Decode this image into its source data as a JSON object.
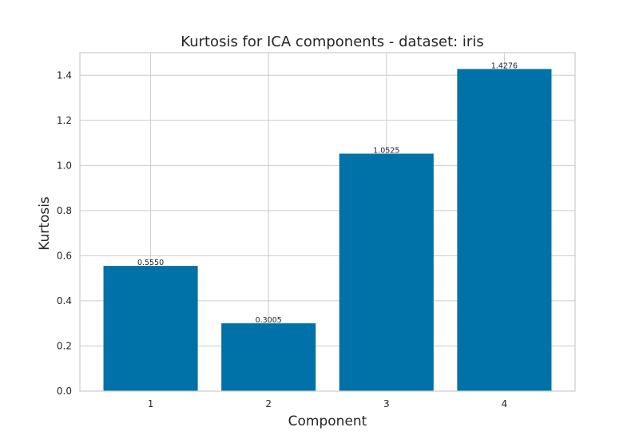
{
  "chart_data": {
    "type": "bar",
    "title": "Kurtosis for ICA components - dataset: iris",
    "xlabel": "Component",
    "ylabel": "Kurtosis",
    "categories": [
      "1",
      "2",
      "3",
      "4"
    ],
    "values": [
      0.555,
      0.3005,
      1.0525,
      1.4276
    ],
    "data_labels": [
      "0.5550",
      "0.3005",
      "1.0525",
      "1.4276"
    ],
    "ylim": [
      0,
      1.5
    ],
    "yticks": [
      0.0,
      0.2,
      0.4,
      0.6,
      0.8,
      1.0,
      1.2,
      1.4
    ],
    "ytick_labels": [
      "0.0",
      "0.2",
      "0.4",
      "0.6",
      "0.8",
      "1.0",
      "1.2",
      "1.4"
    ],
    "grid": true,
    "legend": "none",
    "colors": {
      "bar": "#0072a7",
      "grid": "#cccccc",
      "frame": "#cccccc"
    }
  }
}
